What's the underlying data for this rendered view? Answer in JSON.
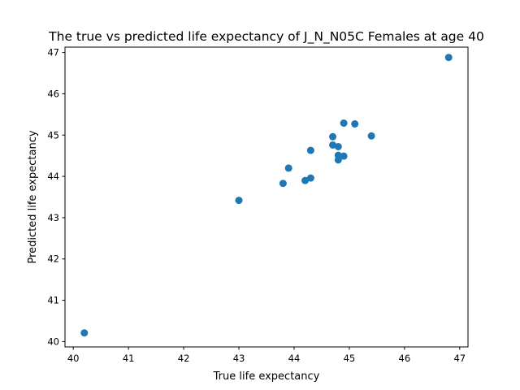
{
  "chart_data": {
    "type": "scatter",
    "title": "The true vs predicted life expectancy of J_N_N05C Females at age 40",
    "xlabel": "True life expectancy",
    "ylabel": "Predicted life expectancy",
    "xlim": [
      39.85,
      47.15
    ],
    "ylim": [
      39.87,
      47.13
    ],
    "xticks": [
      40,
      41,
      42,
      43,
      44,
      45,
      46,
      47
    ],
    "yticks": [
      40,
      41,
      42,
      43,
      44,
      45,
      46,
      47
    ],
    "grid": false,
    "marker_color": "#1f77b4",
    "points": [
      {
        "x": 40.2,
        "y": 40.21
      },
      {
        "x": 43.0,
        "y": 43.42
      },
      {
        "x": 43.8,
        "y": 43.83
      },
      {
        "x": 43.9,
        "y": 44.2
      },
      {
        "x": 44.2,
        "y": 43.9
      },
      {
        "x": 44.3,
        "y": 43.96
      },
      {
        "x": 44.3,
        "y": 44.63
      },
      {
        "x": 44.7,
        "y": 44.96
      },
      {
        "x": 44.7,
        "y": 44.76
      },
      {
        "x": 44.8,
        "y": 44.72
      },
      {
        "x": 44.8,
        "y": 44.51
      },
      {
        "x": 44.8,
        "y": 44.4
      },
      {
        "x": 44.9,
        "y": 44.49
      },
      {
        "x": 44.9,
        "y": 45.29
      },
      {
        "x": 45.1,
        "y": 45.27
      },
      {
        "x": 45.4,
        "y": 44.98
      },
      {
        "x": 46.8,
        "y": 46.88
      }
    ]
  }
}
